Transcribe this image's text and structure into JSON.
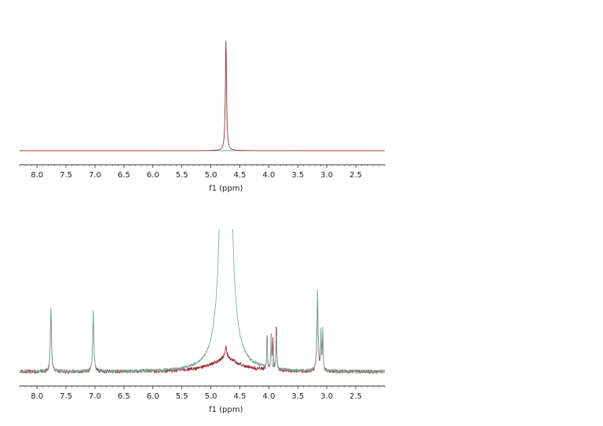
{
  "chart_data": [
    {
      "type": "line",
      "xlabel": "f1 (ppm)",
      "xlim": [
        8.3,
        2.0
      ],
      "ylim": [
        0,
        1.0
      ],
      "xticks": [
        8.0,
        7.5,
        7.0,
        6.5,
        6.0,
        5.5,
        5.0,
        4.5,
        4.0,
        3.5,
        3.0,
        2.5
      ],
      "tick_labels": [
        "8.0",
        "7.5",
        "7.0",
        "6.5",
        "6.0",
        "5.5",
        "5.0",
        "4.5",
        "4.0",
        "3.5",
        "3.0",
        "2.5"
      ],
      "series": [
        {
          "color": "#9a2f3c",
          "peaks": [
            {
              "x": 4.74,
              "height": 0.98,
              "width": 0.012
            }
          ]
        },
        {
          "color": "#7aa89a",
          "peaks": []
        }
      ]
    },
    {
      "type": "line",
      "xlabel": "f1 (ppm)",
      "xlim": [
        8.3,
        2.0
      ],
      "ylim": [
        0,
        1.0
      ],
      "xticks": [
        8.0,
        7.5,
        7.0,
        6.5,
        6.0,
        5.5,
        5.0,
        4.5,
        4.0,
        3.5,
        3.0,
        2.5
      ],
      "tick_labels": [
        "8.0",
        "7.5",
        "7.0",
        "6.5",
        "6.0",
        "5.5",
        "5.0",
        "4.5",
        "4.0",
        "3.5",
        "3.0",
        "2.5"
      ],
      "series": [
        {
          "color": "#9a2f3c",
          "baseline_hump": {
            "center": 4.74,
            "gamma": 0.32,
            "scale": 0.068
          },
          "peaks": [
            {
              "x": 7.76,
              "height": 0.39,
              "width": 0.012
            },
            {
              "x": 7.03,
              "height": 0.38,
              "width": 0.012
            },
            {
              "x": 4.03,
              "height": 0.23,
              "width": 0.007
            },
            {
              "x": 3.96,
              "height": 0.24,
              "width": 0.007
            },
            {
              "x": 3.93,
              "height": 0.21,
              "width": 0.007
            },
            {
              "x": 3.87,
              "height": 0.29,
              "width": 0.008
            },
            {
              "x": 3.16,
              "height": 0.45,
              "width": 0.012
            },
            {
              "x": 3.1,
              "height": 0.22,
              "width": 0.008
            },
            {
              "x": 3.07,
              "height": 0.23,
              "width": 0.008
            }
          ]
        },
        {
          "color": "#7aa89a",
          "baseline_hump": {
            "center": 4.74,
            "gamma": 0.32,
            "scale": 0.004
          },
          "peaks": [
            {
              "x": 7.76,
              "height": 0.42,
              "width": 0.012
            },
            {
              "x": 7.03,
              "height": 0.4,
              "width": 0.012
            },
            {
              "x": 4.74,
              "height": 6.0,
              "width": 0.05
            },
            {
              "x": 4.03,
              "height": 0.17,
              "width": 0.007
            },
            {
              "x": 3.96,
              "height": 0.24,
              "width": 0.007
            },
            {
              "x": 3.87,
              "height": 0.23,
              "width": 0.007
            },
            {
              "x": 3.16,
              "height": 0.52,
              "width": 0.012
            },
            {
              "x": 3.1,
              "height": 0.25,
              "width": 0.008
            },
            {
              "x": 3.07,
              "height": 0.27,
              "width": 0.008
            }
          ]
        }
      ]
    }
  ]
}
